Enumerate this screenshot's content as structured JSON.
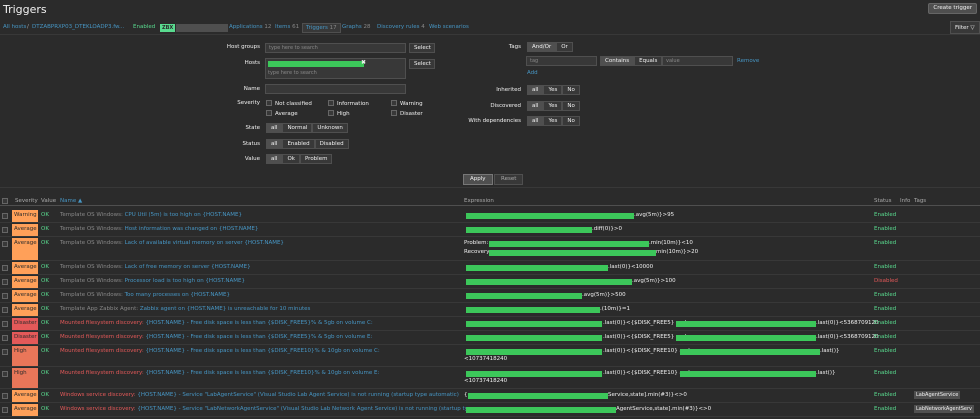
{
  "page": {
    "title": "Triggers",
    "create_button": "Create trigger",
    "filter_tab": "Filter"
  },
  "colors": {
    "severity": {
      "Warning": "#ffa059",
      "Average": "#ffa059",
      "Disaster": "#e45959",
      "High": "#e97659"
    },
    "ok": "#59db8f",
    "disabled": "#e45959",
    "link": "#4796c4"
  },
  "nav": {
    "all_hosts": "All hosts",
    "sep": "/",
    "host": "DTZABPRXP03_DTEKLOADP3.fw...",
    "enabled": "Enabled",
    "zbx": "ZBX",
    "applications": "Applications",
    "applications_count": "12",
    "items": "Items",
    "items_count": "61",
    "triggers": "Triggers",
    "triggers_count": "17",
    "graphs": "Graphs",
    "graphs_count": "28",
    "discovery": "Discovery rules",
    "discovery_count": "4",
    "web": "Web scenarios"
  },
  "filter": {
    "host_groups_label": "Host groups",
    "host_groups_placeholder": "type here to search",
    "select": "Select",
    "hosts_label": "Hosts",
    "hosts_placeholder": "type here to search",
    "name_label": "Name",
    "severity_label": "Severity",
    "severities": [
      "Not classified",
      "Information",
      "Warning",
      "Average",
      "High",
      "Disaster"
    ],
    "state_label": "State",
    "state_options": [
      "all",
      "Normal",
      "Unknown"
    ],
    "status_label": "Status",
    "status_options": [
      "all",
      "Enabled",
      "Disabled"
    ],
    "value_label": "Value",
    "value_options": [
      "all",
      "Ok",
      "Problem"
    ],
    "tags_label": "Tags",
    "tags_options": [
      "And/Or",
      "Or"
    ],
    "tag_placeholder": "tag",
    "tag_ops": [
      "Contains",
      "Equals"
    ],
    "value_placeholder": "value",
    "remove": "Remove",
    "add": "Add",
    "inherited_label": "Inherited",
    "discovered_label": "Discovered",
    "dependencies_label": "With dependencies",
    "yn_options": [
      "all",
      "Yes",
      "No"
    ],
    "apply": "Apply",
    "reset": "Reset"
  },
  "table": {
    "headers": {
      "severity": "Severity",
      "value": "Value",
      "name": "Name ▲",
      "expression": "Expression",
      "status": "Status",
      "info": "Info",
      "tags": "Tags"
    },
    "rows": [
      {
        "severity": "Warning",
        "value": "OK",
        "prefix": "Template OS Windows:",
        "name": "CPU Util (5m) is too high on {HOST.NAME}",
        "expr": [
          ".avg(5m)}>95"
        ],
        "status": "Enabled",
        "tag": ""
      },
      {
        "severity": "Average",
        "value": "OK",
        "prefix": "Template OS Windows:",
        "name": "Host information was changed on {HOST.NAME}",
        "expr": [
          ".diff(0)}>0"
        ],
        "status": "Enabled",
        "tag": ""
      },
      {
        "severity": "Average",
        "value": "OK",
        "prefix": "Template OS Windows:",
        "name": "Lack of available virtual memory on server {HOST.NAME}",
        "expr": [
          "Problem:",
          ".min(10m)}<10",
          "Recovery:",
          "min(10m)}>20"
        ],
        "status": "Enabled",
        "tag": ""
      },
      {
        "severity": "Average",
        "value": "OK",
        "prefix": "Template OS Windows:",
        "name": "Lack of free memory on server {HOST.NAME}",
        "expr": [
          ".last(0)}<10000"
        ],
        "status": "Enabled",
        "tag": ""
      },
      {
        "severity": "Average",
        "value": "OK",
        "prefix": "Template OS Windows:",
        "name": "Processor load is too high on {HOST.NAME}",
        "expr": [
          ".avg(5m)}>100"
        ],
        "status": "Disabled",
        "tag": ""
      },
      {
        "severity": "Average",
        "value": "OK",
        "prefix": "Template OS Windows:",
        "name": "Too many processes on {HOST.NAME}",
        "expr": [
          ".avg(5m)}>500"
        ],
        "status": "Enabled",
        "tag": ""
      },
      {
        "severity": "Average",
        "value": "OK",
        "prefix": "Template App Zabbix Agent:",
        "name": "Zabbix agent on {HOST.NAME} is unreachable for 10 minutes",
        "expr": [
          ".(10m)}=1"
        ],
        "status": "Enabled",
        "tag": ""
      },
      {
        "severity": "Disaster",
        "value": "OK",
        "prefix": "Mounted filesystem discovery:",
        "name": "{HOST.NAME} - Free disk space is less than {$DISK_FREE5}% & 5gb on volume C:",
        "expr": [
          ".last(0)}<{$DISK_FREE5} and",
          ".last(0)}<5368709120"
        ],
        "status": "Enabled",
        "tag": ""
      },
      {
        "severity": "Disaster",
        "value": "OK",
        "prefix": "Mounted filesystem discovery:",
        "name": "{HOST.NAME} - Free disk space is less than {$DISK_FREE5}% & 5gb on volume E:",
        "expr": [
          ".last(0)}<{$DISK_FREE5} and",
          ".last(0)}<5368709120"
        ],
        "status": "Enabled",
        "tag": ""
      },
      {
        "severity": "High",
        "value": "OK",
        "prefix": "Mounted filesystem discovery:",
        "name": "{HOST.NAME} - Free disk space is less than {$DISK_FREE10}% & 10gb on volume C:",
        "expr": [
          ".last(0)}<{$DISK_FREE10} and",
          ".last()}",
          "<10737418240"
        ],
        "status": "Enabled",
        "tag": ""
      },
      {
        "severity": "High",
        "value": "OK",
        "prefix": "Mounted filesystem discovery:",
        "name": "{HOST.NAME} - Free disk space is less than {$DISK_FREE10}% & 10gb on volume E:",
        "expr": [
          ".last(0)}<{$DISK_FREE10} and",
          ".last()}",
          "<10737418240"
        ],
        "status": "Enabled",
        "tag": ""
      },
      {
        "severity": "Average",
        "value": "OK",
        "prefix": "Windows service discovery:",
        "name": "{HOST.NAME} - Service \"LabAgentService\" (Visual Studio Lab Agent Service) is not running (startup type automatic)",
        "expr": [
          "{",
          "Service,state].min(#3)}<>0"
        ],
        "status": "Enabled",
        "tag": "LabAgentService"
      },
      {
        "severity": "Average",
        "value": "OK",
        "prefix": "Windows service discovery:",
        "name": "{HOST.NAME} - Service \"LabNetworkAgentService\" (Visual Studio Lab Network Agent Service) is not running (startup type",
        "expr": [
          "AgentService,state].min(#3)}<>0"
        ],
        "status": "Enabled",
        "tag": "LabNetworkAgentServ"
      }
    ]
  }
}
